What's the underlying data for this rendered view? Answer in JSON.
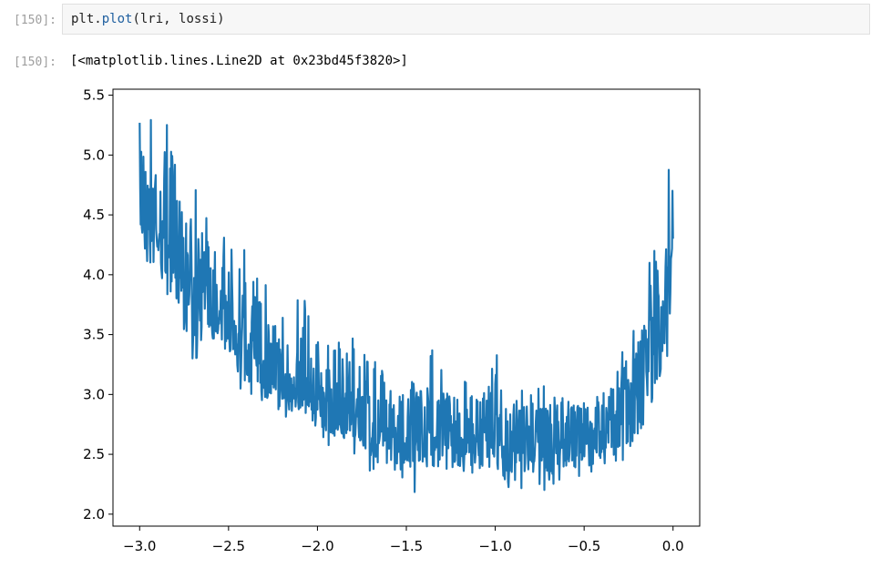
{
  "input_cell": {
    "prompt": "[150]:",
    "code_obj": "plt.",
    "code_fn": "plot",
    "code_args": "(lri, lossi)"
  },
  "output_cell": {
    "prompt": "[150]:",
    "repr": "[<matplotlib.lines.Line2D at 0x23bd45f3820>]"
  },
  "colors": {
    "line": "#1f77b4",
    "prompt": "#9e9e9e",
    "cell_bg": "#f7f7f7"
  },
  "chart_data": {
    "type": "line",
    "title": "",
    "xlabel": "",
    "ylabel": "",
    "xlim": [
      -3.15,
      0.15
    ],
    "ylim": [
      1.9,
      5.55
    ],
    "xticks": [
      -3.0,
      -2.5,
      -2.0,
      -1.5,
      -1.0,
      -0.5,
      0.0
    ],
    "xtick_labels": [
      "−3.0",
      "−2.5",
      "−2.0",
      "−1.5",
      "−1.0",
      "−0.5",
      "0.0"
    ],
    "yticks": [
      2.0,
      2.5,
      3.0,
      3.5,
      4.0,
      4.5,
      5.0,
      5.5
    ],
    "ytick_labels": [
      "2.0",
      "2.5",
      "3.0",
      "3.5",
      "4.0",
      "4.5",
      "5.0",
      "5.5"
    ],
    "grid": false,
    "series": [
      {
        "x": [
          -3.0,
          -2.95,
          -2.9,
          -2.85,
          -2.8,
          -2.75,
          -2.7,
          -2.65,
          -2.6,
          -2.55,
          -2.5,
          -2.45,
          -2.4,
          -2.35,
          -2.3,
          -2.25,
          -2.2,
          -2.15,
          -2.1,
          -2.05,
          -2.0,
          -1.95,
          -1.9,
          -1.85,
          -1.8,
          -1.75,
          -1.7,
          -1.65,
          -1.6,
          -1.55,
          -1.5,
          -1.45,
          -1.4,
          -1.35,
          -1.3,
          -1.25,
          -1.2,
          -1.15,
          -1.1,
          -1.05,
          -1.0,
          -0.95,
          -0.9,
          -0.85,
          -0.8,
          -0.75,
          -0.7,
          -0.65,
          -0.6,
          -0.55,
          -0.5,
          -0.45,
          -0.4,
          -0.35,
          -0.3,
          -0.25,
          -0.2,
          -0.15,
          -0.1,
          -0.05,
          0.0
        ],
        "y": [
          4.6,
          4.55,
          4.45,
          4.35,
          4.25,
          4.1,
          4.0,
          3.9,
          3.85,
          3.8,
          3.7,
          3.6,
          3.5,
          3.4,
          3.35,
          3.3,
          3.2,
          3.15,
          3.1,
          3.05,
          3.0,
          2.95,
          2.9,
          2.85,
          2.8,
          2.8,
          2.75,
          2.75,
          2.72,
          2.7,
          2.7,
          2.68,
          2.7,
          2.7,
          2.68,
          2.68,
          2.7,
          2.68,
          2.7,
          2.68,
          2.66,
          2.66,
          2.66,
          2.65,
          2.66,
          2.66,
          2.66,
          2.68,
          2.7,
          2.72,
          2.74,
          2.76,
          2.78,
          2.82,
          2.88,
          2.95,
          3.05,
          3.2,
          3.4,
          3.75,
          4.2
        ],
        "y_high": [
          5.38,
          5.3,
          5.4,
          5.3,
          5.0,
          4.95,
          4.8,
          4.55,
          4.4,
          4.35,
          4.3,
          4.25,
          4.2,
          4.0,
          3.95,
          3.9,
          3.9,
          3.7,
          3.9,
          3.75,
          3.6,
          3.45,
          3.55,
          3.35,
          3.5,
          3.4,
          3.3,
          3.25,
          3.15,
          3.15,
          3.1,
          3.15,
          3.05,
          3.45,
          3.25,
          3.1,
          3.15,
          3.1,
          3.1,
          3.05,
          3.42,
          3.05,
          3.0,
          3.1,
          3.0,
          3.3,
          3.0,
          3.05,
          3.1,
          3.0,
          3.0,
          3.1,
          3.0,
          3.15,
          3.3,
          3.55,
          3.65,
          3.8,
          4.7,
          5.1,
          4.75
        ],
        "y_low": [
          4.2,
          3.85,
          4.0,
          3.85,
          3.75,
          3.35,
          3.2,
          3.45,
          3.35,
          3.3,
          3.15,
          3.0,
          3.05,
          2.95,
          2.75,
          2.8,
          2.8,
          2.75,
          2.85,
          2.8,
          2.6,
          2.55,
          2.55,
          2.6,
          2.5,
          2.45,
          2.35,
          2.4,
          2.35,
          2.35,
          2.25,
          2.15,
          2.35,
          2.3,
          2.2,
          2.35,
          2.3,
          2.25,
          2.25,
          2.3,
          2.3,
          2.2,
          2.25,
          2.2,
          2.3,
          2.05,
          2.2,
          2.25,
          2.3,
          2.25,
          2.35,
          2.35,
          2.4,
          2.35,
          2.45,
          2.35,
          2.5,
          2.6,
          2.85,
          3.15,
          3.6
        ]
      }
    ]
  }
}
